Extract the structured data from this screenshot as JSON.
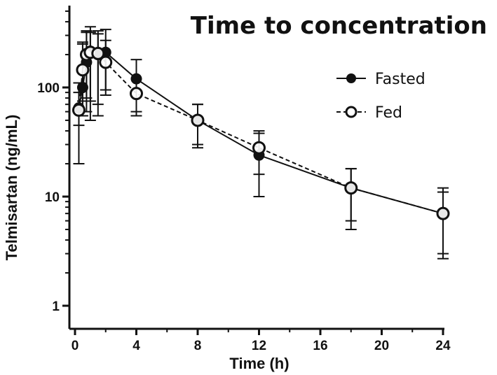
{
  "chart_data": {
    "type": "line",
    "title": "Time to concentration",
    "xlabel": "Time (h)",
    "ylabel": "Telmisartan (ng/mL)",
    "xlim": [
      0,
      24
    ],
    "ylim": [
      1,
      560
    ],
    "yscale": "log",
    "xticks": [
      "0",
      "4",
      "8",
      "12",
      "16",
      "20",
      "24"
    ],
    "yticks": [
      "1",
      "10",
      "100"
    ],
    "legend_position": "top-right",
    "series": [
      {
        "name": "Fasted",
        "marker": "filled-circle",
        "line": "solid",
        "x": [
          0.25,
          0.5,
          0.75,
          1,
          1.5,
          2,
          4,
          8,
          12,
          18,
          24
        ],
        "y": [
          65,
          100,
          170,
          215,
          200,
          210,
          120,
          50,
          24,
          12,
          7
        ],
        "err_low": [
          20,
          55,
          60,
          50,
          55,
          85,
          60,
          30,
          10,
          5,
          2.7
        ],
        "err_high": [
          110,
          250,
          330,
          360,
          330,
          340,
          180,
          70,
          40,
          18,
          12
        ]
      },
      {
        "name": "Fed",
        "marker": "open-circle",
        "line": "dashed",
        "x": [
          0.25,
          0.5,
          0.75,
          1,
          1.5,
          2,
          4,
          8,
          12,
          18,
          24
        ],
        "y": [
          62,
          145,
          200,
          210,
          205,
          170,
          88,
          50,
          28,
          12,
          7
        ],
        "err_low": [
          45,
          75,
          80,
          75,
          70,
          95,
          55,
          28,
          16,
          6,
          3
        ],
        "err_high": [
          90,
          260,
          320,
          320,
          310,
          270,
          120,
          70,
          38,
          18,
          11
        ]
      }
    ]
  }
}
